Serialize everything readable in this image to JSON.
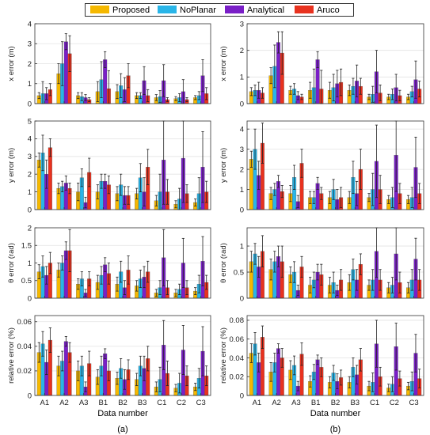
{
  "legend": [
    {
      "name": "Proposed",
      "color": "#f5b800"
    },
    {
      "name": "NoPlanar",
      "color": "#29b5e8"
    },
    {
      "name": "Analytical",
      "color": "#7a1fc7"
    },
    {
      "name": "Aruco",
      "color": "#e8321f"
    }
  ],
  "chart_data": [
    {
      "type": "bar",
      "panel": "a",
      "xlabel": "",
      "ylabel": "x error (m)",
      "ylim": [
        0,
        4
      ],
      "yticks": [
        0,
        1,
        2,
        3,
        4
      ],
      "categories": [
        "A1",
        "A2",
        "A3",
        "B1",
        "B2",
        "B3",
        "C1",
        "C2",
        "C3"
      ],
      "series": [
        {
          "name": "Proposed",
          "values": [
            0.4,
            1.5,
            0.4,
            0.6,
            0.6,
            0.4,
            0.3,
            0.25,
            0.3
          ],
          "err": [
            0.15,
            0.5,
            0.15,
            0.5,
            0.35,
            0.15,
            0.15,
            0.1,
            0.1
          ]
        },
        {
          "name": "NoPlanar",
          "values": [
            0.5,
            2.0,
            0.35,
            1.2,
            0.9,
            0.4,
            0.35,
            0.3,
            0.4
          ],
          "err": [
            0.6,
            1.1,
            0.2,
            0.9,
            0.6,
            0.15,
            0.3,
            0.2,
            0.2
          ]
        },
        {
          "name": "Analytical",
          "values": [
            0.5,
            3.1,
            0.3,
            2.2,
            0.7,
            1.15,
            1.15,
            0.6,
            1.4
          ],
          "err": [
            0.3,
            0.4,
            0.15,
            0.4,
            0.6,
            0.7,
            0.8,
            0.6,
            0.8
          ]
        },
        {
          "name": "Aruco",
          "values": [
            0.7,
            2.5,
            0.2,
            0.75,
            1.4,
            0.4,
            0.2,
            0.2,
            0.5
          ],
          "err": [
            0.3,
            0.9,
            0.1,
            0.9,
            0.6,
            0.3,
            0.1,
            0.1,
            0.3
          ]
        }
      ]
    },
    {
      "type": "bar",
      "panel": "b",
      "xlabel": "",
      "ylabel": "x error (m)",
      "ylim": [
        0,
        3
      ],
      "yticks": [
        0,
        1,
        2,
        3
      ],
      "categories": [
        "A1",
        "A2",
        "A3",
        "B1",
        "B2",
        "B3",
        "C1",
        "C2",
        "C3"
      ],
      "series": [
        {
          "name": "Proposed",
          "values": [
            0.45,
            1.05,
            0.5,
            0.5,
            0.5,
            0.5,
            0.25,
            0.25,
            0.25
          ],
          "err": [
            0.15,
            0.3,
            0.15,
            0.3,
            0.3,
            0.2,
            0.1,
            0.1,
            0.1
          ]
        },
        {
          "name": "NoPlanar",
          "values": [
            0.5,
            1.4,
            0.55,
            0.6,
            0.6,
            0.65,
            0.35,
            0.35,
            0.45
          ],
          "err": [
            0.2,
            0.8,
            0.2,
            0.7,
            0.5,
            0.3,
            0.3,
            0.2,
            0.2
          ]
        },
        {
          "name": "Analytical",
          "values": [
            0.5,
            2.3,
            0.3,
            1.65,
            0.75,
            0.85,
            1.2,
            0.6,
            0.9
          ],
          "err": [
            0.3,
            0.4,
            0.15,
            0.3,
            0.5,
            0.6,
            0.8,
            0.5,
            0.7
          ]
        },
        {
          "name": "Aruco",
          "values": [
            0.4,
            1.9,
            0.25,
            0.55,
            0.8,
            0.65,
            0.4,
            0.3,
            0.55
          ],
          "err": [
            0.2,
            0.8,
            0.1,
            0.7,
            0.5,
            0.3,
            0.3,
            0.2,
            0.3
          ]
        }
      ]
    },
    {
      "type": "bar",
      "panel": "a",
      "xlabel": "",
      "ylabel": "y error (m)",
      "ylim": [
        0,
        5
      ],
      "yticks": [
        0,
        1,
        2,
        3,
        4,
        5
      ],
      "categories": [
        "A1",
        "A2",
        "A3",
        "B1",
        "B2",
        "B3",
        "C1",
        "C2",
        "C3"
      ],
      "series": [
        {
          "name": "Proposed",
          "values": [
            2.8,
            1.2,
            1.0,
            1.0,
            0.9,
            0.9,
            0.5,
            0.3,
            0.4
          ],
          "err": [
            0.4,
            0.3,
            0.5,
            0.4,
            0.4,
            0.3,
            0.3,
            0.2,
            0.2
          ]
        },
        {
          "name": "NoPlanar",
          "values": [
            3.2,
            1.3,
            1.8,
            1.6,
            1.4,
            1.8,
            1.0,
            0.6,
            0.9
          ],
          "err": [
            1.0,
            0.3,
            0.5,
            0.4,
            0.6,
            0.8,
            1.0,
            0.6,
            0.9
          ]
        },
        {
          "name": "Analytical",
          "values": [
            2.0,
            1.5,
            0.4,
            1.6,
            0.8,
            1.0,
            2.8,
            2.9,
            2.4
          ],
          "err": [
            0.8,
            0.4,
            0.3,
            0.4,
            0.5,
            0.8,
            2.5,
            2.5,
            2.0
          ]
        },
        {
          "name": "Aruco",
          "values": [
            3.5,
            1.2,
            2.1,
            1.4,
            0.8,
            2.4,
            1.0,
            0.9,
            1.0
          ],
          "err": [
            0.5,
            0.3,
            0.8,
            0.5,
            0.5,
            1.0,
            0.7,
            0.5,
            0.6
          ]
        }
      ]
    },
    {
      "type": "bar",
      "panel": "b",
      "xlabel": "",
      "ylabel": "y error (m)",
      "ylim": [
        0,
        4.4
      ],
      "yticks": [
        0,
        1,
        2,
        3,
        4
      ],
      "categories": [
        "A1",
        "A2",
        "A3",
        "B1",
        "B2",
        "B3",
        "C1",
        "C2",
        "C3"
      ],
      "series": [
        {
          "name": "Proposed",
          "values": [
            2.5,
            0.8,
            0.8,
            0.6,
            0.6,
            0.6,
            0.6,
            0.5,
            0.5
          ],
          "err": [
            0.4,
            0.3,
            0.4,
            0.3,
            0.3,
            0.3,
            0.2,
            0.2,
            0.2
          ]
        },
        {
          "name": "NoPlanar",
          "values": [
            3.0,
            1.0,
            1.6,
            0.6,
            1.0,
            1.6,
            1.0,
            0.6,
            0.6
          ],
          "err": [
            1.0,
            0.3,
            0.6,
            0.3,
            0.5,
            0.8,
            0.8,
            0.5,
            0.5
          ]
        },
        {
          "name": "Analytical",
          "values": [
            1.7,
            1.4,
            0.4,
            1.3,
            0.5,
            0.8,
            2.4,
            2.7,
            2.1
          ],
          "err": [
            0.7,
            0.3,
            0.3,
            0.3,
            0.5,
            0.6,
            1.8,
            1.8,
            1.5
          ]
        },
        {
          "name": "Aruco",
          "values": [
            3.3,
            0.9,
            2.3,
            0.8,
            0.6,
            2.0,
            1.0,
            0.8,
            0.8
          ],
          "err": [
            1.0,
            0.3,
            0.7,
            0.3,
            0.5,
            1.0,
            0.7,
            0.5,
            0.5
          ]
        }
      ]
    },
    {
      "type": "bar",
      "panel": "a",
      "xlabel": "",
      "ylabel": "θ error (rad)",
      "ylim": [
        0,
        2
      ],
      "yticks": [
        0,
        0.5,
        1,
        1.5,
        2
      ],
      "categories": [
        "A1",
        "A2",
        "A3",
        "B1",
        "B2",
        "B3",
        "C1",
        "C2",
        "C3"
      ],
      "series": [
        {
          "name": "Proposed",
          "values": [
            0.75,
            0.8,
            0.4,
            0.45,
            0.4,
            0.35,
            0.15,
            0.15,
            0.2
          ],
          "err": [
            0.2,
            0.2,
            0.15,
            0.2,
            0.2,
            0.15,
            0.1,
            0.1,
            0.1
          ]
        },
        {
          "name": "NoPlanar",
          "values": [
            0.9,
            1.0,
            0.55,
            0.65,
            0.75,
            0.55,
            0.3,
            0.25,
            0.4
          ],
          "err": [
            0.3,
            0.2,
            0.2,
            0.25,
            0.3,
            0.25,
            0.2,
            0.15,
            0.25
          ]
        },
        {
          "name": "Analytical",
          "values": [
            0.65,
            1.35,
            0.15,
            0.95,
            0.3,
            0.6,
            1.15,
            1.0,
            1.05
          ],
          "err": [
            0.25,
            0.25,
            0.1,
            0.2,
            0.2,
            0.3,
            0.8,
            0.7,
            0.7
          ]
        },
        {
          "name": "Aruco",
          "values": [
            1.0,
            1.35,
            0.55,
            0.7,
            0.8,
            0.75,
            0.3,
            0.3,
            0.45
          ],
          "err": [
            0.3,
            0.6,
            0.2,
            0.3,
            0.4,
            0.3,
            0.2,
            0.2,
            0.2
          ]
        }
      ]
    },
    {
      "type": "bar",
      "panel": "b",
      "xlabel": "",
      "ylabel": "θ error (rad)",
      "ylim": [
        0,
        1.35
      ],
      "yticks": [
        0,
        0.5,
        1
      ],
      "categories": [
        "A1",
        "A2",
        "A3",
        "B1",
        "B2",
        "B3",
        "C1",
        "C2",
        "C3"
      ],
      "series": [
        {
          "name": "Proposed",
          "values": [
            0.7,
            0.55,
            0.45,
            0.25,
            0.25,
            0.3,
            0.25,
            0.2,
            0.2
          ],
          "err": [
            0.2,
            0.2,
            0.15,
            0.15,
            0.15,
            0.15,
            0.1,
            0.1,
            0.1
          ]
        },
        {
          "name": "NoPlanar",
          "values": [
            0.85,
            0.7,
            0.5,
            0.35,
            0.3,
            0.55,
            0.35,
            0.25,
            0.35
          ],
          "err": [
            0.2,
            0.2,
            0.2,
            0.15,
            0.2,
            0.2,
            0.2,
            0.15,
            0.2
          ]
        },
        {
          "name": "Analytical",
          "values": [
            0.6,
            0.8,
            0.15,
            0.5,
            0.15,
            0.35,
            0.9,
            0.85,
            0.75
          ],
          "err": [
            0.2,
            0.2,
            0.1,
            0.15,
            0.1,
            0.2,
            0.5,
            0.5,
            0.4
          ]
        },
        {
          "name": "Aruco",
          "values": [
            0.9,
            0.7,
            0.6,
            0.45,
            0.35,
            0.65,
            0.35,
            0.3,
            0.35
          ],
          "err": [
            0.3,
            0.3,
            0.2,
            0.2,
            0.2,
            0.2,
            0.2,
            0.2,
            0.2
          ]
        }
      ]
    },
    {
      "type": "bar",
      "panel": "a",
      "xlabel": "Data number",
      "ylabel": "relative error (%)",
      "ylim": [
        0,
        0.065
      ],
      "yticks": [
        0,
        0.02,
        0.04,
        0.06
      ],
      "categories": [
        "A1",
        "A2",
        "A3",
        "B1",
        "B2",
        "B3",
        "C1",
        "C2",
        "C3"
      ],
      "series": [
        {
          "name": "Proposed",
          "values": [
            0.035,
            0.024,
            0.02,
            0.015,
            0.014,
            0.013,
            0.007,
            0.006,
            0.007
          ],
          "err": [
            0.008,
            0.008,
            0.008,
            0.006,
            0.005,
            0.005,
            0.004,
            0.003,
            0.003
          ]
        },
        {
          "name": "NoPlanar",
          "values": [
            0.042,
            0.028,
            0.024,
            0.024,
            0.022,
            0.024,
            0.013,
            0.01,
            0.014
          ],
          "err": [
            0.01,
            0.008,
            0.008,
            0.008,
            0.008,
            0.008,
            0.01,
            0.008,
            0.008
          ]
        },
        {
          "name": "Analytical",
          "values": [
            0.027,
            0.044,
            0.007,
            0.034,
            0.013,
            0.022,
            0.041,
            0.037,
            0.036
          ],
          "err": [
            0.01,
            0.004,
            0.004,
            0.004,
            0.008,
            0.01,
            0.02,
            0.02,
            0.02
          ]
        },
        {
          "name": "Aruco",
          "values": [
            0.045,
            0.035,
            0.026,
            0.02,
            0.021,
            0.03,
            0.018,
            0.016,
            0.016
          ],
          "err": [
            0.01,
            0.008,
            0.01,
            0.008,
            0.008,
            0.01,
            0.01,
            0.008,
            0.008
          ]
        }
      ]
    },
    {
      "type": "bar",
      "panel": "b",
      "xlabel": "Data number",
      "ylabel": "relative error (%)",
      "ylim": [
        0,
        0.085
      ],
      "yticks": [
        0,
        0.02,
        0.04,
        0.06,
        0.08
      ],
      "categories": [
        "A1",
        "A2",
        "A3",
        "B1",
        "B2",
        "B3",
        "C1",
        "C2",
        "C3"
      ],
      "series": [
        {
          "name": "Proposed",
          "values": [
            0.045,
            0.025,
            0.027,
            0.015,
            0.014,
            0.014,
            0.01,
            0.008,
            0.01
          ],
          "err": [
            0.01,
            0.01,
            0.01,
            0.006,
            0.006,
            0.006,
            0.005,
            0.004,
            0.004
          ]
        },
        {
          "name": "NoPlanar",
          "values": [
            0.055,
            0.035,
            0.032,
            0.025,
            0.024,
            0.03,
            0.014,
            0.012,
            0.015
          ],
          "err": [
            0.012,
            0.01,
            0.01,
            0.008,
            0.008,
            0.01,
            0.01,
            0.008,
            0.01
          ]
        },
        {
          "name": "Analytical",
          "values": [
            0.035,
            0.05,
            0.01,
            0.038,
            0.015,
            0.022,
            0.055,
            0.052,
            0.045
          ],
          "err": [
            0.01,
            0.005,
            0.005,
            0.005,
            0.008,
            0.01,
            0.025,
            0.025,
            0.02
          ]
        },
        {
          "name": "Aruco",
          "values": [
            0.062,
            0.04,
            0.044,
            0.03,
            0.019,
            0.038,
            0.02,
            0.018,
            0.018
          ],
          "err": [
            0.012,
            0.01,
            0.012,
            0.01,
            0.008,
            0.012,
            0.01,
            0.008,
            0.01
          ]
        }
      ]
    }
  ],
  "panel_labels": {
    "a": "(a)",
    "b": "(b)"
  }
}
